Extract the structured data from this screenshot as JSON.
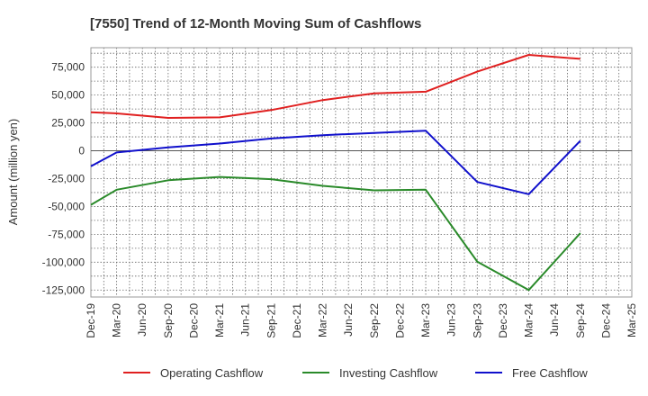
{
  "chart_data": {
    "type": "line",
    "title": "[7550]  Trend of 12-Month Moving Sum of Cashflows",
    "xlabel": "",
    "ylabel": "Amount (million yen)",
    "ylim": [
      -131250,
      92500
    ],
    "yticks": [
      75000,
      50000,
      25000,
      0,
      -25000,
      -50000,
      -75000,
      -100000,
      -125000
    ],
    "ytick_labels": [
      "75,000",
      "50,000",
      "25,000",
      "0",
      "-25,000",
      "-50,000",
      "-75,000",
      "-100,000",
      "-125,000"
    ],
    "categories": [
      "Dec-19",
      "Mar-20",
      "Jun-20",
      "Sep-20",
      "Dec-20",
      "Mar-21",
      "Jun-21",
      "Sep-21",
      "Dec-21",
      "Mar-22",
      "Jun-22",
      "Sep-22",
      "Dec-22",
      "Mar-23",
      "Jun-23",
      "Sep-23",
      "Dec-23",
      "Mar-24",
      "Jun-24",
      "Sep-24",
      "Dec-24",
      "Mar-25"
    ],
    "grid": true,
    "legend_position": "bottom",
    "series": [
      {
        "name": "Operating Cashflow",
        "color": "#e02020",
        "values": [
          34500,
          33500,
          null,
          29500,
          null,
          30000,
          null,
          36500,
          null,
          45500,
          null,
          51500,
          null,
          53000,
          null,
          71000,
          null,
          86000,
          null,
          82500,
          null,
          null
        ]
      },
      {
        "name": "Investing Cashflow",
        "color": "#2a8a2a",
        "values": [
          -48500,
          -35000,
          null,
          -26500,
          null,
          -23500,
          null,
          -25500,
          null,
          -31500,
          null,
          -35500,
          null,
          -35000,
          null,
          -99500,
          null,
          -125000,
          null,
          -74000,
          null,
          null
        ]
      },
      {
        "name": "Free Cashflow",
        "color": "#1010cc",
        "values": [
          -14000,
          -1500,
          null,
          3000,
          null,
          6500,
          null,
          11000,
          null,
          14000,
          null,
          16000,
          null,
          18000,
          null,
          -28000,
          null,
          -39000,
          null,
          9000,
          null,
          null
        ]
      }
    ]
  }
}
